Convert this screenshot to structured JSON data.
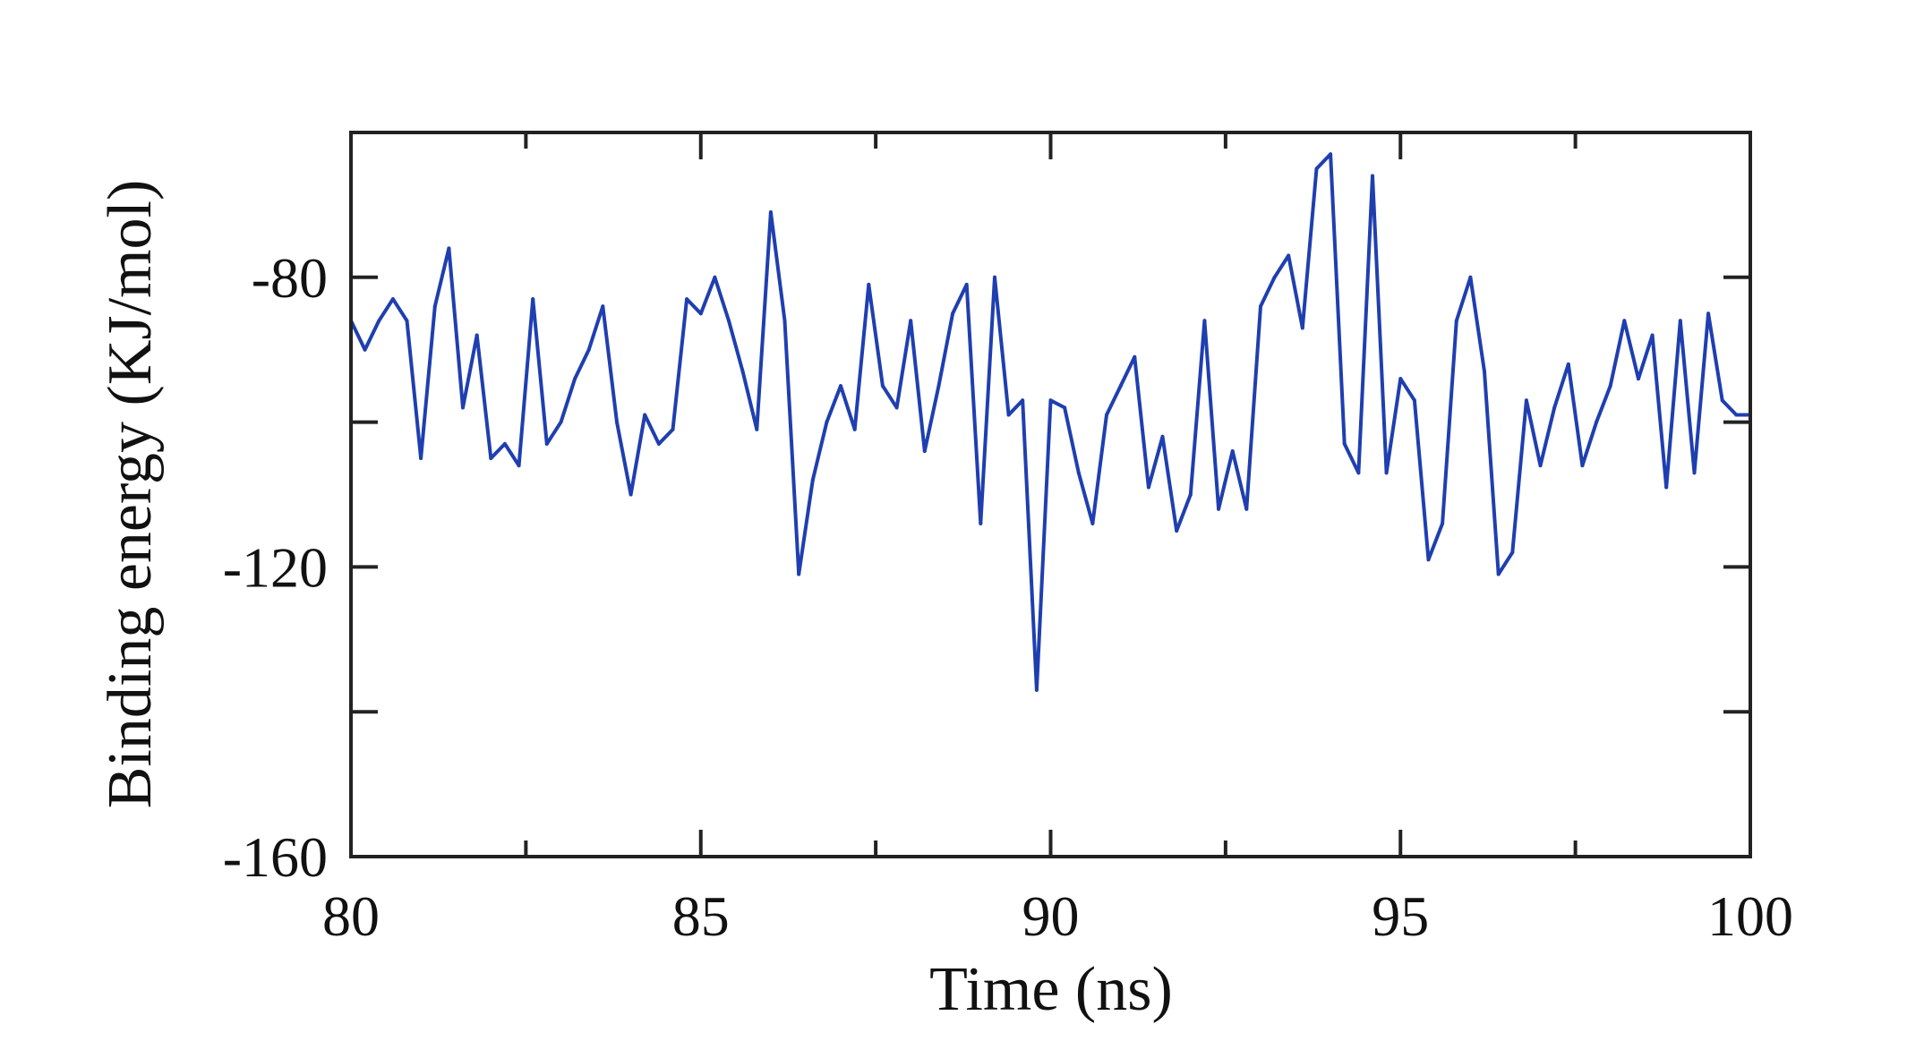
{
  "chart_data": {
    "type": "line",
    "title": "",
    "xlabel": "Time (ns)",
    "ylabel": "Binding energy (KJ/mol)",
    "xlim": [
      80,
      100
    ],
    "ylim": [
      -160,
      -60
    ],
    "x_ticks": [
      80,
      85,
      90,
      95,
      100
    ],
    "x_tick_labels": [
      "80",
      "85",
      "90",
      "95",
      "100"
    ],
    "x_minor_ticks": [
      82.5,
      87.5,
      92.5,
      97.5
    ],
    "y_ticks": [
      -160,
      -140,
      -120,
      -100,
      -80
    ],
    "y_tick_labels": [
      "-160",
      "",
      "-120",
      "",
      "-80"
    ],
    "grid": false,
    "line_color": "#1f3fb0",
    "series": [
      {
        "name": "",
        "x": [
          80.0,
          80.2,
          80.4,
          80.6,
          80.8,
          81.0,
          81.2,
          81.4,
          81.6,
          81.8,
          82.0,
          82.2,
          82.4,
          82.6,
          82.8,
          83.0,
          83.2,
          83.4,
          83.6,
          83.8,
          84.0,
          84.2,
          84.4,
          84.6,
          84.8,
          85.0,
          85.2,
          85.4,
          85.6,
          85.8,
          86.0,
          86.2,
          86.4,
          86.6,
          86.8,
          87.0,
          87.2,
          87.4,
          87.6,
          87.8,
          88.0,
          88.2,
          88.4,
          88.6,
          88.8,
          89.0,
          89.2,
          89.4,
          89.6,
          89.8,
          90.0,
          90.2,
          90.4,
          90.6,
          90.8,
          91.0,
          91.2,
          91.4,
          91.6,
          91.8,
          92.0,
          92.2,
          92.4,
          92.6,
          92.8,
          93.0,
          93.2,
          93.4,
          93.6,
          93.8,
          94.0,
          94.2,
          94.4,
          94.6,
          94.8,
          95.0,
          95.2,
          95.4,
          95.6,
          95.8,
          96.0,
          96.2,
          96.4,
          96.6,
          96.8,
          97.0,
          97.2,
          97.4,
          97.6,
          97.8,
          98.0,
          98.2,
          98.4,
          98.6,
          98.8,
          99.0,
          99.2,
          99.4,
          99.6,
          99.8,
          100.0
        ],
        "values": [
          -86,
          -90,
          -86,
          -83,
          -86,
          -105,
          -84,
          -76,
          -98,
          -88,
          -105,
          -103,
          -106,
          -83,
          -103,
          -100,
          -94,
          -90,
          -84,
          -100,
          -110,
          -99,
          -103,
          -101,
          -83,
          -85,
          -80,
          -86,
          -93,
          -101,
          -71,
          -86,
          -121,
          -108,
          -100,
          -95,
          -101,
          -81,
          -95,
          -98,
          -86,
          -104,
          -95,
          -85,
          -81,
          -114,
          -80,
          -99,
          -97,
          -137,
          -97,
          -98,
          -107,
          -114,
          -99,
          -95,
          -91,
          -109,
          -102,
          -115,
          -110,
          -86,
          -112,
          -104,
          -112,
          -84,
          -80,
          -77,
          -87,
          -65,
          -63,
          -103,
          -107,
          -66,
          -107,
          -94,
          -97,
          -119,
          -114,
          -86,
          -80,
          -93,
          -121,
          -118,
          -97,
          -106,
          -98,
          -92,
          -106,
          -100,
          -95,
          -86,
          -94,
          -88,
          -109,
          -86,
          -107,
          -85,
          -97,
          -99,
          -99
        ]
      }
    ]
  }
}
